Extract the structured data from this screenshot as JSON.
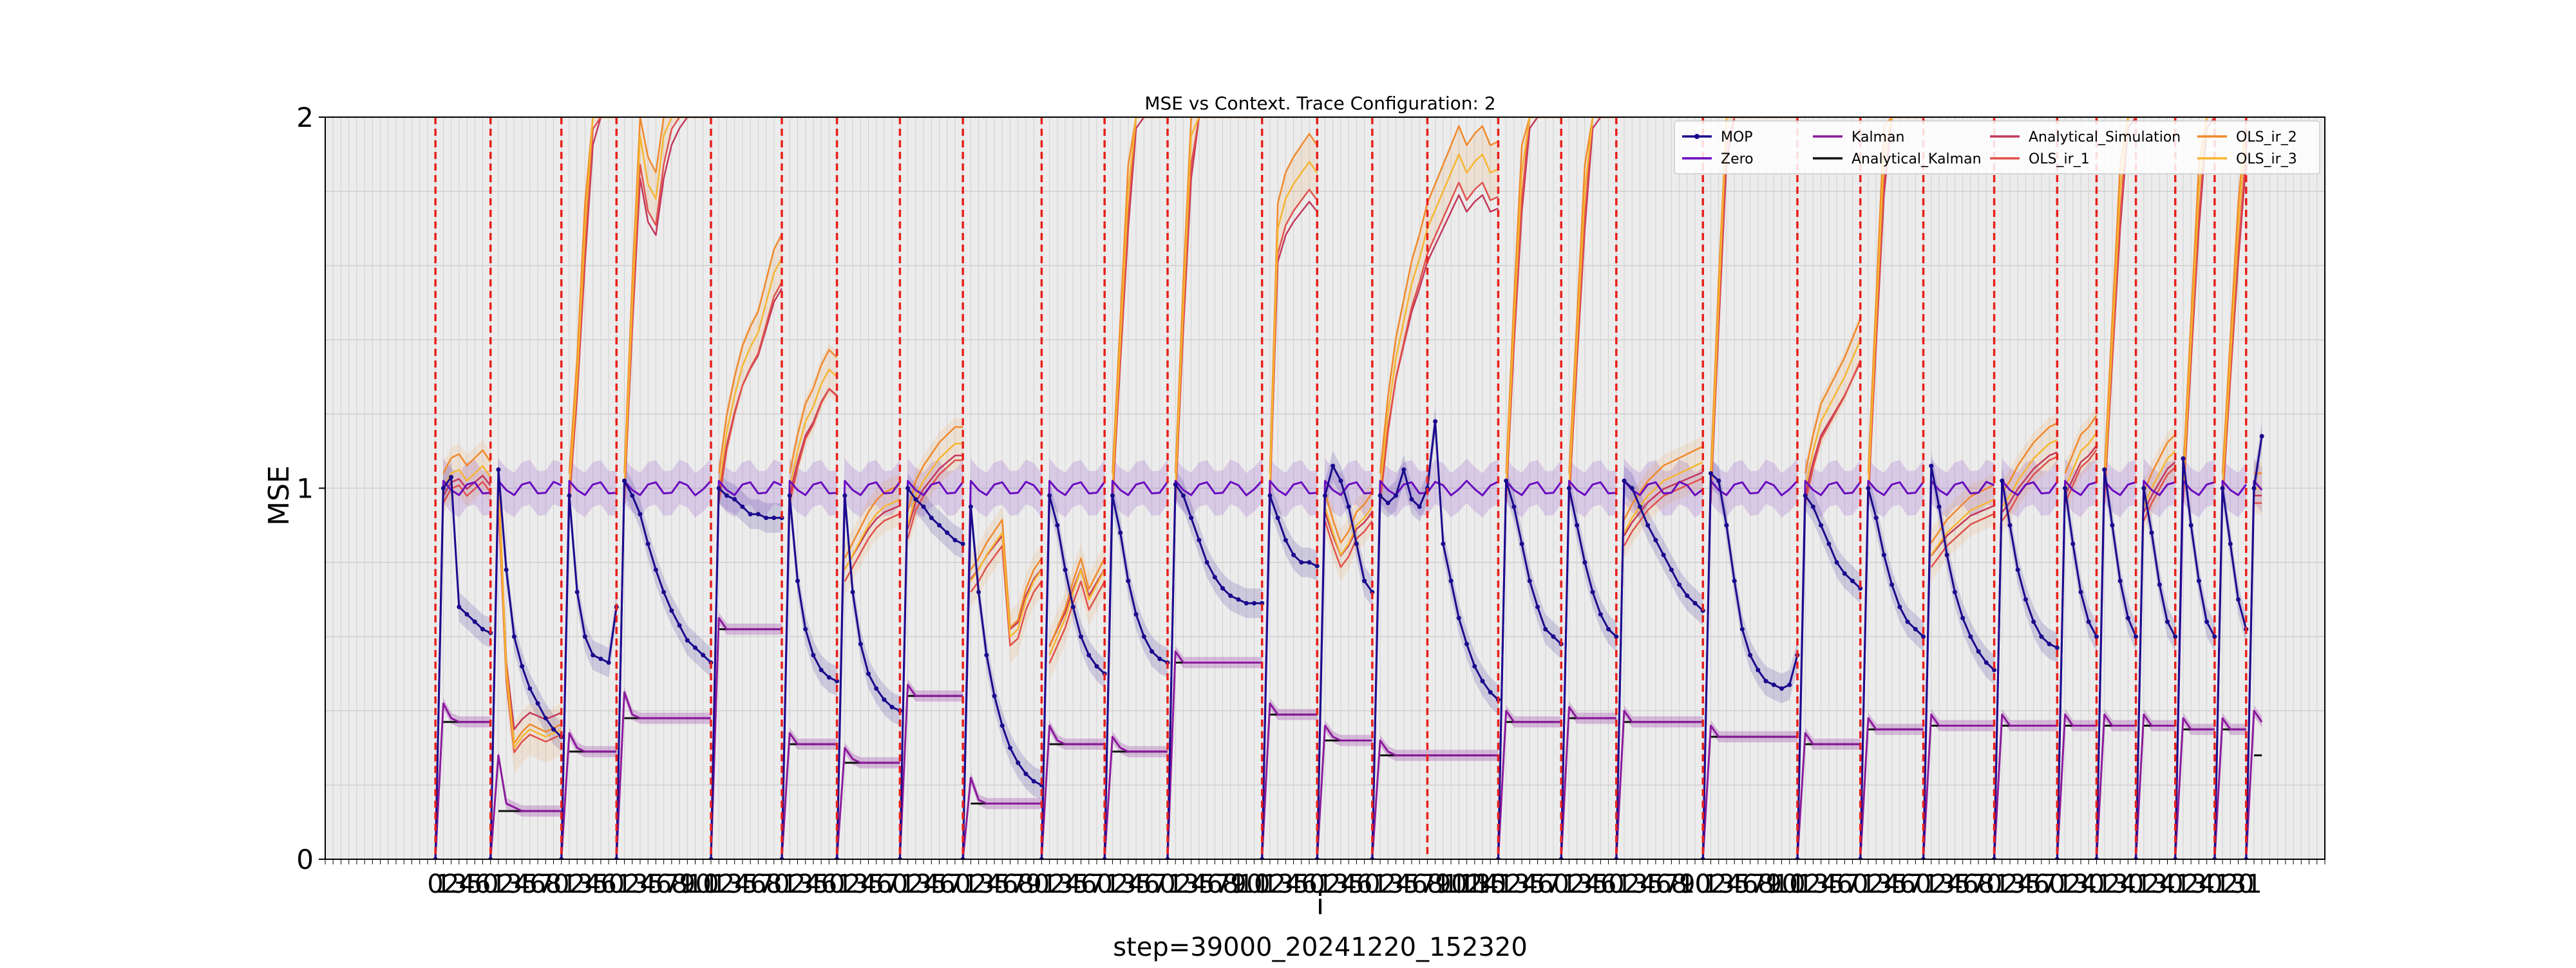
{
  "chart_data": {
    "type": "line",
    "title": "MSE vs Context. Trace Configuration: 2",
    "xlabel": "i",
    "ylabel": "MSE",
    "footer": "step=39000_20241220_152320",
    "xlim": [
      -2,
      252
    ],
    "ylim": [
      0,
      2
    ],
    "yticks": [
      0,
      1,
      2
    ],
    "grid": true,
    "legend_position": "top-right",
    "colors": {
      "MOP": "#1a0a8c",
      "Zero": "#6a0dbf",
      "Kalman": "#8b1a9c",
      "Analytical_Kalman": "#111111",
      "Analytical_Simulation": "#c2375a",
      "OLS_ir_1": "#e0504a",
      "OLS_ir_2": "#f0892b",
      "OLS_ir_3": "#f6b631",
      "boundary": "#e8201b",
      "plot_bg": "#ececec"
    },
    "segment_boundaries": [
      12,
      19,
      28,
      35,
      47,
      56,
      63,
      71,
      79,
      89,
      97,
      105,
      117,
      124,
      131,
      138,
      147,
      155,
      162,
      173,
      185,
      193,
      201,
      210,
      218,
      223,
      228,
      233,
      238,
      242
    ],
    "segments": [
      {
        "start": 12,
        "end": 19,
        "analytical": 0.37,
        "mop": [
          0,
          1.0,
          1.03,
          0.68,
          0.66,
          0.64,
          0.62,
          0.61
        ],
        "kalman": [
          0,
          0.42,
          0.38,
          0.37,
          0.37,
          0.37,
          0.37,
          0.37
        ],
        "ols": [
          1.0,
          1.04,
          1.05,
          1.02,
          1.04,
          1.06,
          1.03
        ]
      },
      {
        "start": 19,
        "end": 28,
        "analytical": 0.13,
        "mop": [
          0,
          1.05,
          0.78,
          0.6,
          0.52,
          0.46,
          0.42,
          0.38,
          0.35,
          0.33
        ],
        "kalman": [
          0,
          0.28,
          0.15,
          0.14,
          0.13,
          0.13,
          0.13,
          0.13,
          0.13,
          0.13
        ],
        "ols": [
          1.0,
          0.5,
          0.3,
          0.33,
          0.35,
          0.34,
          0.33,
          0.34,
          0.35
        ]
      },
      {
        "start": 28,
        "end": 35,
        "analytical": 0.29,
        "mop": [
          0,
          0.98,
          0.72,
          0.6,
          0.55,
          0.54,
          0.53,
          0.68
        ],
        "kalman": [
          0,
          0.34,
          0.3,
          0.29,
          0.29,
          0.29,
          0.29,
          0.29
        ],
        "ols": [
          1.0,
          1.3,
          1.7,
          2.05,
          2.2,
          2.3,
          2.4
        ]
      },
      {
        "start": 35,
        "end": 47,
        "analytical": 0.38,
        "mop": [
          0,
          1.02,
          0.98,
          0.93,
          0.85,
          0.78,
          0.72,
          0.67,
          0.63,
          0.59,
          0.57,
          0.55,
          0.53
        ],
        "kalman": [
          0,
          0.45,
          0.39,
          0.38,
          0.38,
          0.38,
          0.38,
          0.38,
          0.38,
          0.38,
          0.38,
          0.38,
          0.38
        ],
        "ols": [
          1.0,
          1.5,
          1.95,
          1.82,
          1.78,
          1.95,
          2.05,
          2.1,
          2.2,
          2.25,
          2.3,
          2.35
        ]
      },
      {
        "start": 47,
        "end": 56,
        "analytical": 0.62,
        "mop": [
          0,
          1.0,
          0.98,
          0.97,
          0.95,
          0.93,
          0.93,
          0.92,
          0.92,
          0.92
        ],
        "kalman": [
          0,
          0.65,
          0.62,
          0.62,
          0.62,
          0.62,
          0.62,
          0.62,
          0.62,
          0.62
        ],
        "ols": [
          1.0,
          1.15,
          1.25,
          1.33,
          1.38,
          1.42,
          1.5,
          1.58,
          1.62
        ]
      },
      {
        "start": 56,
        "end": 63,
        "analytical": 0.31,
        "mop": [
          0,
          0.98,
          0.75,
          0.62,
          0.55,
          0.51,
          0.49,
          0.48
        ],
        "kalman": [
          0,
          0.34,
          0.31,
          0.31,
          0.31,
          0.31,
          0.31,
          0.31
        ],
        "ols": [
          1.0,
          1.1,
          1.18,
          1.22,
          1.28,
          1.32,
          1.3
        ]
      },
      {
        "start": 63,
        "end": 71,
        "analytical": 0.26,
        "mop": [
          0,
          0.98,
          0.72,
          0.58,
          0.5,
          0.46,
          0.43,
          0.41,
          0.4
        ],
        "kalman": [
          0,
          0.3,
          0.27,
          0.26,
          0.26,
          0.26,
          0.26,
          0.26,
          0.26
        ],
        "ols": [
          0.78,
          0.82,
          0.86,
          0.9,
          0.93,
          0.95,
          0.96,
          0.97
        ]
      },
      {
        "start": 71,
        "end": 79,
        "analytical": 0.44,
        "mop": [
          0,
          1.0,
          0.97,
          0.95,
          0.92,
          0.9,
          0.88,
          0.86,
          0.85
        ],
        "kalman": [
          0,
          0.47,
          0.44,
          0.44,
          0.44,
          0.44,
          0.44,
          0.44,
          0.44
        ],
        "ols": [
          0.9,
          0.98,
          1.02,
          1.05,
          1.08,
          1.1,
          1.12,
          1.12
        ]
      },
      {
        "start": 79,
        "end": 89,
        "analytical": 0.15,
        "mop": [
          0,
          0.95,
          0.72,
          0.55,
          0.44,
          0.36,
          0.3,
          0.26,
          0.23,
          0.21,
          0.2
        ],
        "kalman": [
          0,
          0.22,
          0.16,
          0.15,
          0.15,
          0.15,
          0.15,
          0.15,
          0.15,
          0.15,
          0.15
        ],
        "ols": [
          0.75,
          0.78,
          0.82,
          0.85,
          0.88,
          0.6,
          0.62,
          0.7,
          0.75,
          0.78
        ]
      },
      {
        "start": 89,
        "end": 97,
        "analytical": 0.31,
        "mop": [
          0,
          0.98,
          0.9,
          0.78,
          0.68,
          0.6,
          0.55,
          0.52,
          0.5
        ],
        "kalman": [
          0,
          0.36,
          0.32,
          0.31,
          0.31,
          0.31,
          0.31,
          0.31,
          0.31
        ],
        "ols": [
          0.55,
          0.6,
          0.65,
          0.72,
          0.78,
          0.7,
          0.74,
          0.78
        ]
      },
      {
        "start": 97,
        "end": 105,
        "analytical": 0.29,
        "mop": [
          0,
          0.98,
          0.88,
          0.75,
          0.66,
          0.6,
          0.56,
          0.54,
          0.53
        ],
        "kalman": [
          0,
          0.33,
          0.3,
          0.29,
          0.29,
          0.29,
          0.29,
          0.29,
          0.29
        ],
        "ols": [
          1.0,
          1.4,
          1.8,
          2.1,
          2.3,
          2.4,
          2.45,
          2.5
        ]
      },
      {
        "start": 105,
        "end": 117,
        "analytical": 0.53,
        "mop": [
          0,
          1.01,
          0.98,
          0.92,
          0.86,
          0.8,
          0.76,
          0.73,
          0.71,
          0.7,
          0.69,
          0.69,
          0.69
        ],
        "kalman": [
          0,
          0.56,
          0.53,
          0.53,
          0.53,
          0.53,
          0.53,
          0.53,
          0.53,
          0.53,
          0.53,
          0.53,
          0.53
        ],
        "ols": [
          1.0,
          1.5,
          1.95,
          2.2,
          2.3,
          2.4,
          2.45,
          2.5,
          2.55,
          2.6,
          2.6,
          2.6
        ]
      },
      {
        "start": 117,
        "end": 124,
        "analytical": 0.39,
        "mop": [
          0,
          0.98,
          0.92,
          0.86,
          0.82,
          0.8,
          0.8,
          0.79
        ],
        "kalman": [
          0,
          0.42,
          0.39,
          0.39,
          0.39,
          0.39,
          0.39,
          0.39
        ],
        "ols": [
          1.0,
          1.7,
          1.78,
          1.82,
          1.85,
          1.88,
          1.85
        ]
      },
      {
        "start": 124,
        "end": 131,
        "analytical": 0.32,
        "mop": [
          0,
          0.98,
          1.06,
          1.02,
          0.95,
          0.85,
          0.75,
          0.72
        ],
        "kalman": [
          0,
          0.36,
          0.33,
          0.32,
          0.32,
          0.32,
          0.32,
          0.32
        ],
        "ols": [
          0.95,
          0.88,
          0.82,
          0.85,
          0.9,
          0.92,
          0.95
        ]
      },
      {
        "start": 131,
        "end": 147,
        "analytical": 0.28,
        "mop": [
          0,
          0.98,
          0.96,
          0.98,
          1.05,
          0.97,
          0.95,
          1.0,
          1.18,
          0.85,
          0.75,
          0.65,
          0.58,
          0.52,
          0.48,
          0.45,
          0.43
        ],
        "kalman": [
          0,
          0.32,
          0.29,
          0.28,
          0.28,
          0.28,
          0.28,
          0.28,
          0.28,
          0.28,
          0.28,
          0.28,
          0.28,
          0.28,
          0.28,
          0.28,
          0.28
        ],
        "ols": [
          1.0,
          1.2,
          1.35,
          1.45,
          1.55,
          1.62,
          1.7,
          1.75,
          1.8,
          1.85,
          1.9,
          1.85,
          1.88,
          1.9,
          1.85,
          1.86
        ]
      },
      {
        "start": 147,
        "end": 155,
        "analytical": 0.37,
        "mop": [
          0,
          1.02,
          0.95,
          0.85,
          0.75,
          0.68,
          0.62,
          0.6,
          0.58
        ],
        "kalman": [
          0,
          0.4,
          0.37,
          0.37,
          0.37,
          0.37,
          0.37,
          0.37,
          0.37
        ],
        "ols": [
          1.0,
          1.45,
          1.85,
          2.1,
          2.25,
          2.35,
          2.4,
          2.4
        ]
      },
      {
        "start": 155,
        "end": 162,
        "analytical": 0.38,
        "mop": [
          0,
          1.0,
          0.9,
          0.8,
          0.72,
          0.66,
          0.62,
          0.6
        ],
        "kalman": [
          0,
          0.41,
          0.38,
          0.38,
          0.38,
          0.38,
          0.38,
          0.38
        ],
        "ols": [
          1.0,
          1.4,
          1.8,
          2.1,
          2.3,
          2.4,
          2.4
        ]
      },
      {
        "start": 162,
        "end": 173,
        "analytical": 0.37,
        "mop": [
          0,
          1.02,
          1.0,
          0.95,
          0.9,
          0.86,
          0.82,
          0.78,
          0.74,
          0.71,
          0.69,
          0.67
        ],
        "kalman": [
          0,
          0.4,
          0.37,
          0.37,
          0.37,
          0.37,
          0.37,
          0.37,
          0.37,
          0.37,
          0.37,
          0.37
        ],
        "ols": [
          0.88,
          0.92,
          0.95,
          0.98,
          1.0,
          1.02,
          1.03,
          1.04,
          1.05,
          1.06,
          1.07
        ]
      },
      {
        "start": 173,
        "end": 185,
        "analytical": 0.33,
        "mop": [
          0,
          1.04,
          1.02,
          0.9,
          0.75,
          0.62,
          0.55,
          0.51,
          0.48,
          0.47,
          0.46,
          0.47,
          0.55
        ],
        "kalman": [
          0,
          0.36,
          0.33,
          0.33,
          0.33,
          0.33,
          0.33,
          0.33,
          0.33,
          0.33,
          0.33,
          0.33,
          0.33
        ],
        "ols": [
          1.0,
          1.5,
          2.0,
          2.3,
          2.45,
          2.5,
          2.55,
          2.6,
          2.6,
          2.6,
          2.62,
          2.62
        ]
      },
      {
        "start": 185,
        "end": 193,
        "analytical": 0.31,
        "mop": [
          0,
          0.98,
          0.95,
          0.9,
          0.85,
          0.8,
          0.77,
          0.75,
          0.73
        ],
        "kalman": [
          0,
          0.34,
          0.31,
          0.31,
          0.31,
          0.31,
          0.31,
          0.31,
          0.31
        ],
        "ols": [
          1.0,
          1.1,
          1.18,
          1.22,
          1.26,
          1.3,
          1.35,
          1.4
        ]
      },
      {
        "start": 193,
        "end": 201,
        "analytical": 0.35,
        "mop": [
          0,
          1.0,
          0.92,
          0.82,
          0.74,
          0.68,
          0.64,
          0.62,
          0.6
        ],
        "kalman": [
          0,
          0.38,
          0.35,
          0.35,
          0.35,
          0.35,
          0.35,
          0.35,
          0.35
        ],
        "ols": [
          1.0,
          1.45,
          1.9,
          2.2,
          2.3,
          2.4,
          2.45,
          2.5
        ]
      },
      {
        "start": 201,
        "end": 210,
        "analytical": 0.36,
        "mop": [
          0,
          1.06,
          0.95,
          0.82,
          0.72,
          0.65,
          0.6,
          0.56,
          0.53,
          0.51
        ],
        "kalman": [
          0,
          0.39,
          0.36,
          0.36,
          0.36,
          0.36,
          0.36,
          0.36,
          0.36,
          0.36
        ],
        "ols": [
          0.82,
          0.85,
          0.88,
          0.9,
          0.92,
          0.94,
          0.95,
          0.96,
          0.97
        ]
      },
      {
        "start": 210,
        "end": 218,
        "analytical": 0.36,
        "mop": [
          0,
          1.02,
          0.9,
          0.78,
          0.7,
          0.64,
          0.6,
          0.58,
          0.57
        ],
        "kalman": [
          0,
          0.39,
          0.36,
          0.36,
          0.36,
          0.36,
          0.36,
          0.36,
          0.36
        ],
        "ols": [
          0.95,
          0.98,
          1.02,
          1.05,
          1.08,
          1.1,
          1.12,
          1.13
        ]
      },
      {
        "start": 218,
        "end": 223,
        "analytical": 0.36,
        "mop": [
          0,
          1.0,
          0.85,
          0.72,
          0.64,
          0.6
        ],
        "kalman": [
          0,
          0.39,
          0.36,
          0.36,
          0.36,
          0.36
        ],
        "ols": [
          1.0,
          1.05,
          1.1,
          1.12,
          1.15
        ]
      },
      {
        "start": 223,
        "end": 228,
        "analytical": 0.36,
        "mop": [
          0,
          1.05,
          0.9,
          0.75,
          0.65,
          0.6
        ],
        "kalman": [
          0,
          0.39,
          0.36,
          0.36,
          0.36,
          0.36
        ],
        "ols": [
          1.0,
          1.4,
          1.8,
          2.1,
          2.3
        ]
      },
      {
        "start": 228,
        "end": 233,
        "analytical": 0.36,
        "mop": [
          0,
          1.0,
          0.88,
          0.74,
          0.64,
          0.6
        ],
        "kalman": [
          0,
          0.39,
          0.36,
          0.36,
          0.36,
          0.36
        ],
        "ols": [
          0.95,
          1.0,
          1.04,
          1.08,
          1.1
        ]
      },
      {
        "start": 233,
        "end": 238,
        "analytical": 0.35,
        "mop": [
          0,
          1.08,
          0.9,
          0.75,
          0.64,
          0.6
        ],
        "kalman": [
          0,
          0.38,
          0.35,
          0.35,
          0.35,
          0.35
        ],
        "ols": [
          1.0,
          1.4,
          1.8,
          2.1,
          2.3
        ]
      },
      {
        "start": 238,
        "end": 242,
        "analytical": 0.35,
        "mop": [
          0,
          1.0,
          0.85,
          0.7,
          0.62
        ],
        "kalman": [
          0,
          0.38,
          0.35,
          0.35,
          0.35
        ],
        "ols": [
          1.0,
          1.35,
          1.7,
          2.0
        ]
      },
      {
        "start": 242,
        "end": 244,
        "analytical": 0.28,
        "mop": [
          0,
          1.0,
          1.14
        ],
        "kalman": [
          0,
          0.4,
          0.37
        ],
        "ols": [
          1.0,
          1.0
        ]
      }
    ],
    "legend": [
      "MOP",
      "Zero",
      "Kalman",
      "Analytical_Kalman",
      "Analytical_Simulation",
      "OLS_ir_1",
      "OLS_ir_2",
      "OLS_ir_3"
    ]
  }
}
